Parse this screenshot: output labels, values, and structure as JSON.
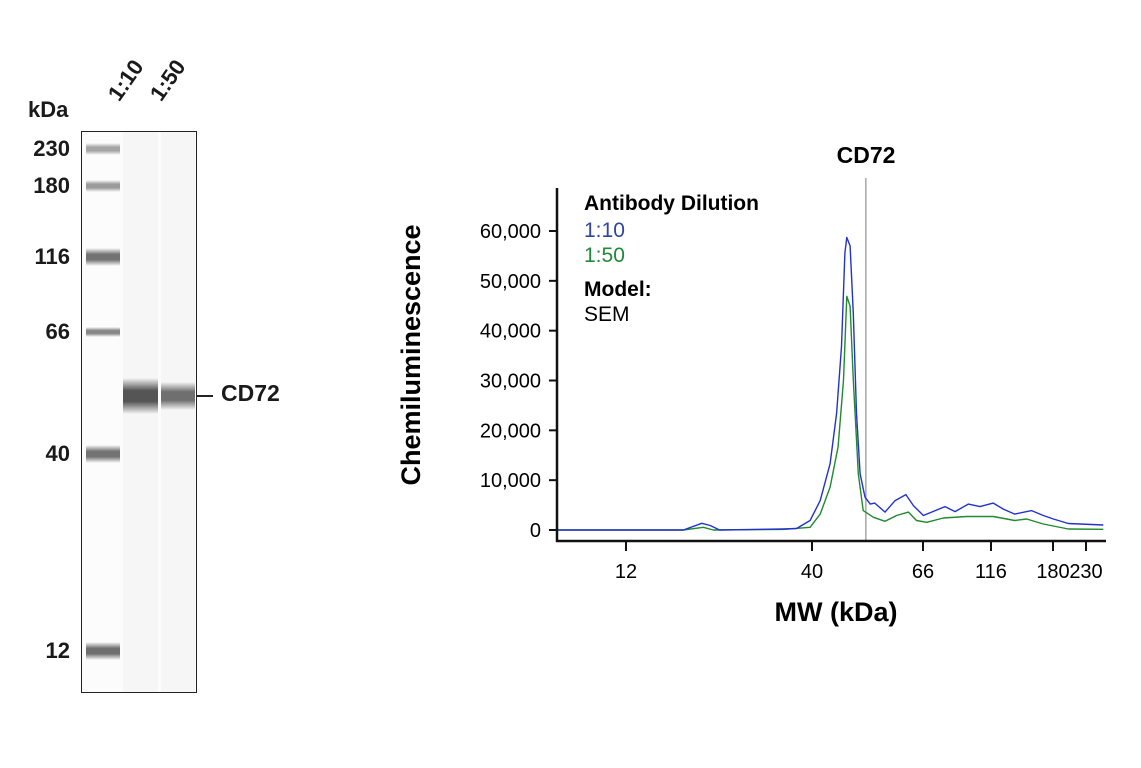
{
  "blot": {
    "unit_label": "kDa",
    "lane_labels": [
      "1:10",
      "1:50"
    ],
    "ladder": [
      {
        "label": "230",
        "kda": 230,
        "intensity": 0.45
      },
      {
        "label": "180",
        "kda": 180,
        "intensity": 0.5
      },
      {
        "label": "116",
        "kda": 116,
        "intensity": 0.7
      },
      {
        "label": "66",
        "kda": 66,
        "intensity": 0.6
      },
      {
        "label": "40",
        "kda": 40,
        "intensity": 0.7
      },
      {
        "label": "12",
        "kda": 12,
        "intensity": 0.72
      }
    ],
    "target_label": "CD72",
    "target_bands": [
      {
        "lane": "1:10",
        "intensity": 0.85
      },
      {
        "lane": "1:50",
        "intensity": 0.72
      }
    ]
  },
  "chart_data": {
    "type": "line",
    "title": "CD72",
    "xlabel": "MW (kDa)",
    "ylabel": "Chemiluminescence",
    "xlim": [
      7.7,
      265
    ],
    "ylim": [
      0,
      70000
    ],
    "x_ticks": [
      {
        "value": 12,
        "label": "12"
      },
      {
        "value": 40,
        "label": "40"
      },
      {
        "value": 66,
        "label": "66"
      },
      {
        "value": 116,
        "label": "116"
      },
      {
        "value": 180,
        "label": "180"
      },
      {
        "value": 230,
        "label": "230"
      }
    ],
    "y_ticks": [
      {
        "value": 0,
        "label": "0"
      },
      {
        "value": 10000,
        "label": "10,000"
      },
      {
        "value": 20000,
        "label": "20,000"
      },
      {
        "value": 30000,
        "label": "30,000"
      },
      {
        "value": 40000,
        "label": "40,000"
      },
      {
        "value": 50000,
        "label": "50,000"
      },
      {
        "value": 60000,
        "label": "60,000"
      }
    ],
    "marker_line": {
      "label": "CD72",
      "kda": 51
    },
    "legend": {
      "title": "Antibody Dilution",
      "model_label": "Model:",
      "model_value": "SEM",
      "placement": "top-left"
    },
    "series": [
      {
        "name": "1:10",
        "color": "#2233cc",
        "label_color": "#2f45a0",
        "points": [
          [
            7.7,
            0
          ],
          [
            17.4,
            0
          ],
          [
            19.6,
            1340
          ],
          [
            20.7,
            900
          ],
          [
            22.0,
            0
          ],
          [
            33.2,
            200
          ],
          [
            36.2,
            300
          ],
          [
            39.5,
            1900
          ],
          [
            41.5,
            5900
          ],
          [
            43.4,
            13300
          ],
          [
            44.7,
            23400
          ],
          [
            45.7,
            36800
          ],
          [
            46.4,
            55600
          ],
          [
            46.8,
            58700
          ],
          [
            47.5,
            57000
          ],
          [
            48.2,
            43500
          ],
          [
            48.9,
            23400
          ],
          [
            49.7,
            11300
          ],
          [
            50.8,
            6600
          ],
          [
            52.0,
            5200
          ],
          [
            53.1,
            5400
          ],
          [
            55.6,
            3600
          ],
          [
            58.2,
            5900
          ],
          [
            61.1,
            7100
          ],
          [
            63.2,
            4900
          ],
          [
            66.2,
            2900
          ],
          [
            79.2,
            4700
          ],
          [
            86.1,
            3700
          ],
          [
            96.1,
            5200
          ],
          [
            105.9,
            4700
          ],
          [
            117.9,
            5400
          ],
          [
            126.6,
            4200
          ],
          [
            137.2,
            3200
          ],
          [
            154.7,
            3900
          ],
          [
            168.1,
            2900
          ],
          [
            180.5,
            2200
          ],
          [
            201.7,
            1300
          ],
          [
            260,
            1000
          ]
        ]
      },
      {
        "name": "1:50",
        "color": "#1f8a2e",
        "label_color": "#1f8a3a",
        "points": [
          [
            7.7,
            0
          ],
          [
            17.4,
            0
          ],
          [
            19.8,
            540
          ],
          [
            21.1,
            0
          ],
          [
            33.2,
            130
          ],
          [
            39.5,
            540
          ],
          [
            41.5,
            3200
          ],
          [
            43.4,
            8600
          ],
          [
            45.0,
            16700
          ],
          [
            46.1,
            30100
          ],
          [
            46.8,
            46900
          ],
          [
            47.5,
            44900
          ],
          [
            48.2,
            30100
          ],
          [
            49.3,
            11300
          ],
          [
            50.4,
            3900
          ],
          [
            52.8,
            2550
          ],
          [
            55.6,
            1750
          ],
          [
            58.6,
            2900
          ],
          [
            61.8,
            3600
          ],
          [
            64.1,
            1900
          ],
          [
            68.1,
            1550
          ],
          [
            78.1,
            2400
          ],
          [
            94.9,
            2700
          ],
          [
            117.9,
            2700
          ],
          [
            137.2,
            1900
          ],
          [
            149.4,
            2200
          ],
          [
            168.1,
            1200
          ],
          [
            201.7,
            200
          ],
          [
            260,
            150
          ]
        ]
      }
    ]
  }
}
